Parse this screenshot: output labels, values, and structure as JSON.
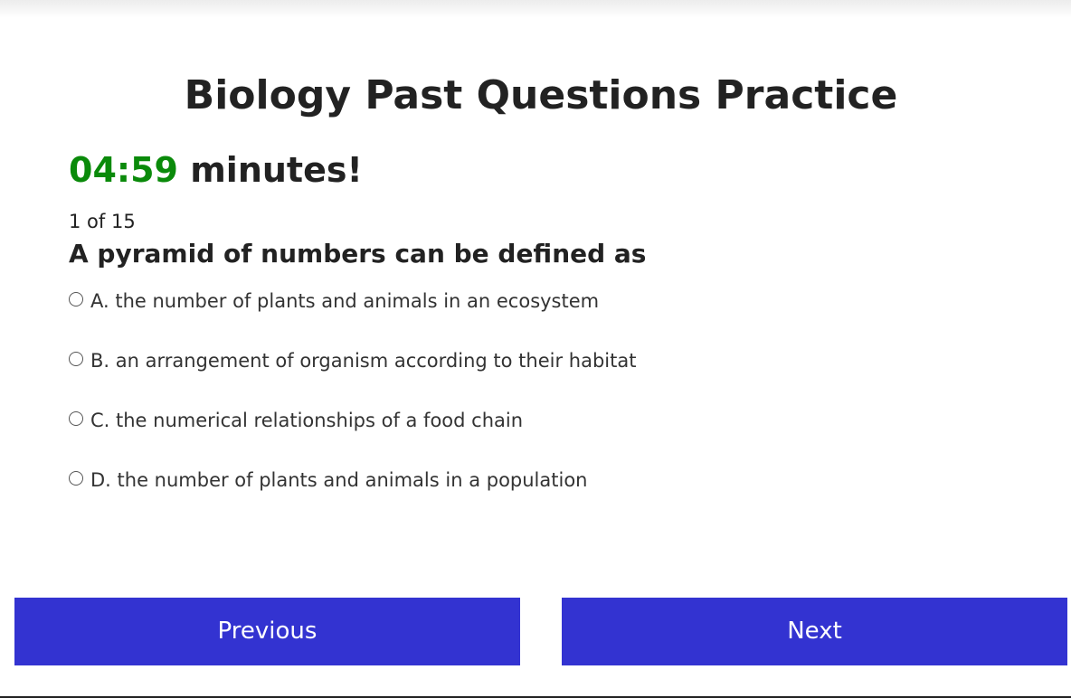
{
  "header": {
    "title": "Biology Past Questions Practice"
  },
  "timer": {
    "time": "04:59",
    "suffix": "minutes!",
    "time_color": "#0a8a0a"
  },
  "progress": {
    "text": "1 of 15"
  },
  "question": {
    "text": "A pyramid of numbers can be defined as",
    "options": [
      {
        "label": "A. the number of plants and animals in an ecosystem"
      },
      {
        "label": "B. an arrangement of organism according to their habitat"
      },
      {
        "label": "C. the numerical relationships of a food chain"
      },
      {
        "label": "D. the number of plants and animals in a population"
      }
    ]
  },
  "navigation": {
    "previous_label": "Previous",
    "next_label": "Next",
    "button_color": "#3333d1"
  }
}
